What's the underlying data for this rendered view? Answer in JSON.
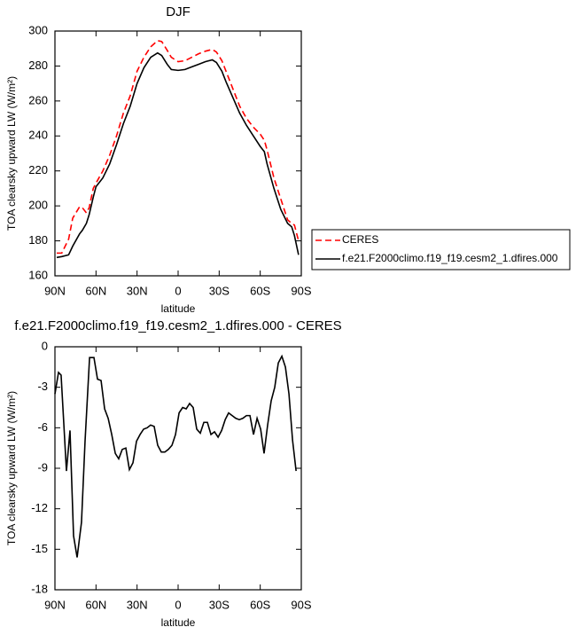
{
  "chart_data": [
    {
      "type": "line",
      "title": "DJF",
      "xlabel": "latitude",
      "ylabel": "TOA clearsky upward LW (W/m²)",
      "x": [
        88.7,
        85,
        80,
        77,
        72,
        70,
        67,
        65,
        62,
        60,
        55,
        50,
        45,
        40,
        35,
        30,
        25,
        20,
        15,
        12,
        8,
        5,
        0,
        -5,
        -10,
        -15,
        -20,
        -25,
        -28,
        -32,
        -35,
        -40,
        -45,
        -50,
        -55,
        -60,
        -63,
        -65,
        -70,
        -75,
        -80,
        -83,
        -85,
        -88
      ],
      "series": [
        {
          "name": "CERES",
          "color": "#ff0000",
          "dash": true,
          "values": [
            173,
            173,
            181,
            193,
            199.5,
            199,
            196,
            199,
            210,
            213,
            220,
            229,
            240,
            253,
            263,
            277,
            285,
            291,
            294.5,
            294,
            289,
            285,
            282.5,
            283,
            285,
            287,
            288.5,
            289.5,
            288,
            283,
            277,
            267,
            257,
            250,
            245,
            241,
            237.5,
            232,
            216,
            204,
            192,
            190,
            189,
            180
          ]
        },
        {
          "name": "f.e21.F2000climo.f19_f19.cesm2_1.dfires.000",
          "color": "#000000",
          "dash": false,
          "values": [
            170.5,
            171,
            172,
            177,
            184,
            186,
            190,
            195,
            205,
            211,
            216,
            224,
            235,
            247,
            257,
            270,
            279,
            285,
            287.5,
            286,
            281,
            278,
            277.5,
            278,
            279.5,
            281,
            282.5,
            283.5,
            282,
            277,
            271,
            262,
            253,
            246,
            240,
            234,
            231,
            224,
            210,
            198,
            190,
            188,
            183,
            172
          ]
        }
      ],
      "xlim": [
        90,
        -90
      ],
      "xticks": [
        {
          "value": 90,
          "label": "90N"
        },
        {
          "value": 60,
          "label": "60N"
        },
        {
          "value": 30,
          "label": "30N"
        },
        0,
        {
          "value": -30,
          "label": "30S"
        },
        {
          "value": -60,
          "label": "60S"
        },
        {
          "value": -90,
          "label": "90S"
        }
      ],
      "ylim": [
        160,
        300
      ],
      "yticks": [
        160,
        180,
        200,
        220,
        240,
        260,
        280,
        300
      ],
      "legend": "right"
    },
    {
      "type": "line",
      "title": "f.e21.F2000climo.f19_f19.cesm2_1.dfires.000 - CERES",
      "xlabel": "latitude",
      "ylabel": "TOA clearsky upward LW (W/m²)",
      "x": [
        90,
        87.4,
        85.5,
        81.6,
        79.0,
        76.4,
        73.8,
        70.6,
        68.0,
        64.7,
        61.5,
        58.9,
        56.3,
        53.7,
        51.1,
        48.5,
        45.9,
        43.4,
        40.8,
        38.2,
        35.6,
        33.0,
        30.4,
        27.8,
        25.2,
        22.6,
        20.1,
        17.5,
        14.9,
        12.3,
        9.7,
        7.1,
        4.5,
        1.9,
        -0.7,
        -3.3,
        -5.9,
        -8.4,
        -11.0,
        -13.6,
        -16.2,
        -18.8,
        -21.4,
        -24.0,
        -26.6,
        -29.2,
        -31.8,
        -34.4,
        -36.9,
        -39.5,
        -42.1,
        -44.7,
        -47.3,
        -49.9,
        -52.5,
        -55.1,
        -57.7,
        -60.3,
        -62.8,
        -65.4,
        -68.0,
        -70.6,
        -73.2,
        -75.8,
        -78.4,
        -81.0,
        -83.6,
        -86.2
      ],
      "series": [
        {
          "color": "#000000",
          "dash": false,
          "values": [
            -3.5,
            -1.9,
            -2.1,
            -9.2,
            -6.2,
            -14,
            -15.6,
            -13,
            -7,
            -0.8,
            -0.8,
            -2.4,
            -2.5,
            -4.6,
            -5.3,
            -6.5,
            -7.9,
            -8.3,
            -7.6,
            -7.5,
            -9.1,
            -8.6,
            -7,
            -6.5,
            -6.1,
            -6.0,
            -5.8,
            -5.9,
            -7.3,
            -7.8,
            -7.8,
            -7.6,
            -7.3,
            -6.5,
            -4.9,
            -4.5,
            -4.6,
            -4.2,
            -4.5,
            -6.1,
            -6.4,
            -5.6,
            -5.6,
            -6.5,
            -6.3,
            -6.7,
            -6.2,
            -5.4,
            -4.9,
            -5.1,
            -5.3,
            -5.4,
            -5.3,
            -5.1,
            -5.1,
            -6.5,
            -5.3,
            -6.1,
            -7.9,
            -5.8,
            -4.0,
            -3.0,
            -1.2,
            -0.7,
            -1.5,
            -3.5,
            -6.9,
            -9.2
          ]
        }
      ],
      "xlim": [
        90,
        -90
      ],
      "xticks": [
        {
          "value": 90,
          "label": "90N"
        },
        {
          "value": 60,
          "label": "60N"
        },
        {
          "value": 30,
          "label": "30N"
        },
        0,
        {
          "value": -30,
          "label": "30S"
        },
        {
          "value": -60,
          "label": "60S"
        },
        {
          "value": -90,
          "label": "90S"
        }
      ],
      "ylim": [
        -18,
        0
      ],
      "yticks": [
        -18,
        -15,
        -12,
        -9,
        -6,
        -3,
        0
      ]
    }
  ]
}
